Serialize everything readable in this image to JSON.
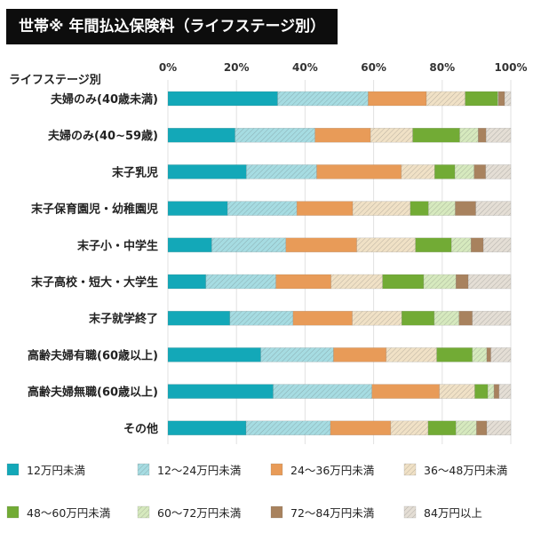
{
  "title": "世帯※ 年間払込保険料（ライフステージ別）",
  "chart_data": {
    "type": "bar",
    "orientation": "horizontal",
    "stacked": "percent",
    "title": "世帯※ 年間払込保険料（ライフステージ別）",
    "ylabel": "ライフステージ別",
    "xlim": [
      0,
      100
    ],
    "xticks": [
      "0%",
      "20%",
      "40%",
      "60%",
      "80%",
      "100%"
    ],
    "grid": true,
    "legend_position": "bottom",
    "categories": [
      "夫婦のみ(40歳未満)",
      "夫婦のみ(40~59歳)",
      "末子乳児",
      "末子保育園児・幼稚園児",
      "末子小・中学生",
      "末子高校・短大・大学生",
      "末子就学終了",
      "高齢夫婦有職(60歳以上)",
      "高齢夫婦無職(60歳以上)",
      "その他"
    ],
    "series": [
      {
        "name": "12万円未満",
        "color": "#13a8b8",
        "hatched": false,
        "values": [
          32.0,
          19.6,
          22.9,
          17.4,
          12.8,
          11.1,
          18.1,
          27.1,
          30.7,
          22.8
        ]
      },
      {
        "name": "12～24万円未満",
        "color": "#a6dce2",
        "hatched": true,
        "values": [
          26.4,
          23.3,
          20.5,
          20.2,
          21.6,
          20.4,
          18.4,
          21.2,
          28.8,
          24.6
        ]
      },
      {
        "name": "24～36万円未満",
        "color": "#e89b58",
        "hatched": false,
        "values": [
          17.0,
          16.2,
          24.7,
          16.3,
          20.7,
          16.1,
          17.3,
          15.4,
          19.7,
          17.6
        ]
      },
      {
        "name": "36～48万円未満",
        "color": "#f0e1c6",
        "hatched": true,
        "values": [
          11.3,
          12.3,
          9.7,
          16.8,
          17.1,
          15.0,
          14.4,
          14.7,
          10.3,
          10.9
        ]
      },
      {
        "name": "48～60万円未満",
        "color": "#72ab35",
        "hatched": false,
        "values": [
          9.5,
          13.7,
          5.9,
          5.3,
          10.5,
          12.0,
          9.5,
          10.4,
          3.8,
          8.1
        ]
      },
      {
        "name": "60～72万円未満",
        "color": "#d6e9be",
        "hatched": true,
        "values": [
          0.2,
          5.4,
          5.6,
          7.8,
          5.7,
          9.4,
          7.2,
          4.2,
          1.8,
          6.0
        ]
      },
      {
        "name": "72～84万円未満",
        "color": "#a8825e",
        "hatched": false,
        "values": [
          1.8,
          2.3,
          3.4,
          6.0,
          3.6,
          3.6,
          3.9,
          1.2,
          1.5,
          3.0
        ]
      },
      {
        "name": "84万円以上",
        "color": "#e4ded5",
        "hatched": true,
        "values": [
          1.8,
          7.2,
          7.3,
          10.2,
          8.0,
          12.4,
          11.2,
          5.8,
          3.4,
          7.0
        ]
      }
    ]
  }
}
